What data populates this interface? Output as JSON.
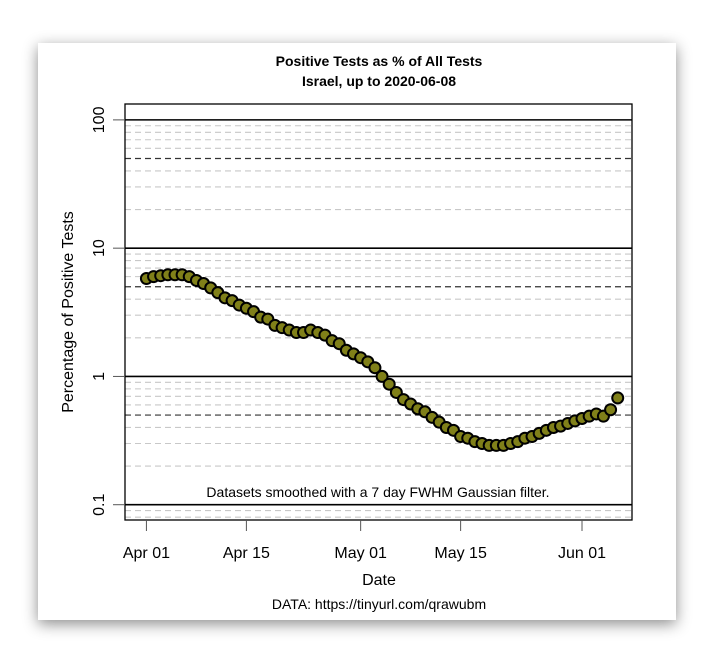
{
  "chart_data": {
    "type": "scatter",
    "title": "Positive Tests as % of All Tests",
    "subtitle": "Israel, up to 2020-06-08",
    "xlabel": "Date",
    "ylabel": "Percentage of Positive Tests",
    "y_scale": "log",
    "ylim": [
      0.076,
      133
    ],
    "xlim": [
      "2020-03-29",
      "2020-06-08"
    ],
    "grid": true,
    "x_ticks": [
      {
        "date": "2020-04-01",
        "label": "Apr 01"
      },
      {
        "date": "2020-04-15",
        "label": "Apr 15"
      },
      {
        "date": "2020-05-01",
        "label": "May 01"
      },
      {
        "date": "2020-05-15",
        "label": "May 15"
      },
      {
        "date": "2020-06-01",
        "label": "Jun 01"
      }
    ],
    "y_ticks": [
      {
        "value": 100,
        "label": "100"
      },
      {
        "value": 10,
        "label": "10"
      },
      {
        "value": 1,
        "label": "1"
      },
      {
        "value": 0.1,
        "label": "0.1"
      }
    ],
    "annotation": "Datasets smoothed with a 7 day FWHM Gaussian filter.",
    "source": "DATA: https://tinyurl.com/qrawubm",
    "series": [
      {
        "color": "#808019",
        "edge_color": "#000000",
        "x": [
          "2020-04-01",
          "2020-04-02",
          "2020-04-03",
          "2020-04-04",
          "2020-04-05",
          "2020-04-06",
          "2020-04-07",
          "2020-04-08",
          "2020-04-09",
          "2020-04-10",
          "2020-04-11",
          "2020-04-12",
          "2020-04-13",
          "2020-04-14",
          "2020-04-15",
          "2020-04-16",
          "2020-04-17",
          "2020-04-18",
          "2020-04-19",
          "2020-04-20",
          "2020-04-21",
          "2020-04-22",
          "2020-04-23",
          "2020-04-24",
          "2020-04-25",
          "2020-04-26",
          "2020-04-27",
          "2020-04-28",
          "2020-04-29",
          "2020-04-30",
          "2020-05-01",
          "2020-05-02",
          "2020-05-03",
          "2020-05-04",
          "2020-05-05",
          "2020-05-06",
          "2020-05-07",
          "2020-05-08",
          "2020-05-09",
          "2020-05-10",
          "2020-05-11",
          "2020-05-12",
          "2020-05-13",
          "2020-05-14",
          "2020-05-15",
          "2020-05-16",
          "2020-05-17",
          "2020-05-18",
          "2020-05-19",
          "2020-05-20",
          "2020-05-21",
          "2020-05-22",
          "2020-05-23",
          "2020-05-24",
          "2020-05-25",
          "2020-05-26",
          "2020-05-27",
          "2020-05-28",
          "2020-05-29",
          "2020-05-30",
          "2020-05-31",
          "2020-06-01",
          "2020-06-02",
          "2020-06-03",
          "2020-06-04",
          "2020-06-05",
          "2020-06-06"
        ],
        "y": [
          5.8,
          6.0,
          6.1,
          6.2,
          6.2,
          6.2,
          6.0,
          5.6,
          5.3,
          4.9,
          4.5,
          4.1,
          3.9,
          3.6,
          3.4,
          3.2,
          2.9,
          2.8,
          2.5,
          2.4,
          2.3,
          2.2,
          2.2,
          2.3,
          2.2,
          2.1,
          1.9,
          1.8,
          1.6,
          1.5,
          1.4,
          1.3,
          1.17,
          1.0,
          0.87,
          0.75,
          0.66,
          0.61,
          0.56,
          0.53,
          0.48,
          0.44,
          0.4,
          0.38,
          0.34,
          0.33,
          0.31,
          0.3,
          0.29,
          0.29,
          0.29,
          0.3,
          0.31,
          0.33,
          0.34,
          0.36,
          0.38,
          0.4,
          0.41,
          0.43,
          0.45,
          0.47,
          0.49,
          0.51,
          0.49,
          0.55,
          0.68
        ]
      }
    ]
  }
}
